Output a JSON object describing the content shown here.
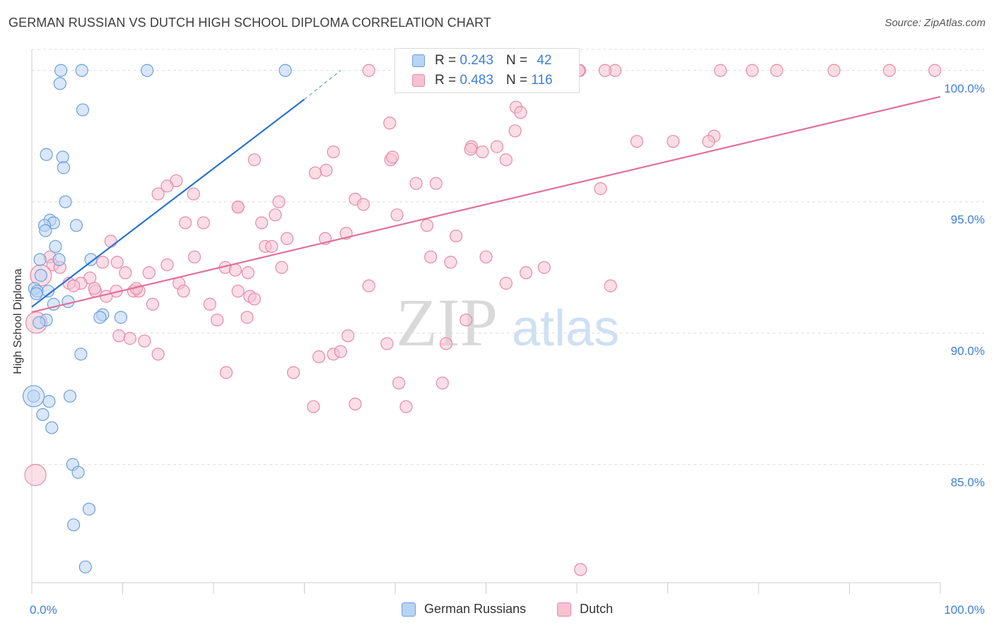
{
  "title": "GERMAN RUSSIAN VS DUTCH HIGH SCHOOL DIPLOMA CORRELATION CHART",
  "source": "Source: ZipAtlas.com",
  "watermark": {
    "zip": "ZIP",
    "atlas": "atlas"
  },
  "colors": {
    "blue_fill": "#b9d3f3",
    "blue_stroke": "#6c9fdd",
    "blue_line": "#2a72cf",
    "pink_fill": "#f7c1d2",
    "pink_stroke": "#e58aa9",
    "pink_line": "#e0709a",
    "axis_label": "#3f7fd6",
    "grid": "#dcdcdc"
  },
  "legend": {
    "rows": [
      {
        "r_label": "R = ",
        "r_value": "0.243",
        "n_label": "N = ",
        "n_value": "42"
      },
      {
        "r_label": "R = ",
        "r_value": "0.483",
        "n_label": "N = ",
        "n_value": "116"
      }
    ]
  },
  "chart_data": {
    "type": "scatter",
    "title": "GERMAN RUSSIAN VS DUTCH HIGH SCHOOL DIPLOMA CORRELATION CHART",
    "xlabel": "",
    "ylabel": "High School Diploma",
    "xlim": [
      0,
      100
    ],
    "ylim": [
      80.5,
      100.8
    ],
    "x_tick_labels": [
      "0.0%",
      "100.0%"
    ],
    "y_ticks": [
      {
        "value": 85,
        "label": "85.0%"
      },
      {
        "value": 90,
        "label": "90.0%"
      },
      {
        "value": 95,
        "label": "95.0%"
      },
      {
        "value": 100,
        "label": "100.0%"
      }
    ],
    "series": [
      {
        "name": "German Russians",
        "color": "blue",
        "trend": {
          "x0": 0,
          "y0": 91.0,
          "x1": 30,
          "y1": 98.9,
          "dash_to_x": 34,
          "dash_to_y": 100.0
        },
        "points": [
          [
            3.2,
            100
          ],
          [
            5.5,
            100
          ],
          [
            12.7,
            100
          ],
          [
            27.9,
            100
          ],
          [
            3.1,
            99.5
          ],
          [
            5.6,
            98.5
          ],
          [
            1.6,
            96.8
          ],
          [
            3.4,
            96.7
          ],
          [
            3.5,
            96.3
          ],
          [
            3.7,
            95.0
          ],
          [
            2.0,
            94.3
          ],
          [
            2.4,
            94.2
          ],
          [
            1.4,
            94.1
          ],
          [
            1.5,
            93.9
          ],
          [
            4.9,
            94.1
          ],
          [
            2.6,
            93.3
          ],
          [
            0.9,
            92.8
          ],
          [
            3.0,
            92.8
          ],
          [
            6.5,
            92.8
          ],
          [
            1.0,
            92.2
          ],
          [
            0.3,
            91.7
          ],
          [
            0.6,
            91.6
          ],
          [
            1.8,
            91.6
          ],
          [
            0.5,
            91.5
          ],
          [
            4.0,
            91.2
          ],
          [
            2.4,
            91.1
          ],
          [
            7.8,
            90.7
          ],
          [
            7.5,
            90.6
          ],
          [
            9.8,
            90.6
          ],
          [
            1.6,
            90.5
          ],
          [
            0.8,
            90.4
          ],
          [
            5.4,
            89.2
          ],
          [
            0.2,
            87.6
          ],
          [
            4.2,
            87.6
          ],
          [
            1.9,
            87.4
          ],
          [
            1.2,
            86.9
          ],
          [
            2.2,
            86.4
          ],
          [
            4.5,
            85.0
          ],
          [
            5.1,
            84.7
          ],
          [
            6.3,
            83.3
          ],
          [
            4.6,
            82.7
          ],
          [
            5.9,
            81.1
          ]
        ],
        "large_points": [
          [
            0.2,
            87.6
          ]
        ]
      },
      {
        "name": "Dutch",
        "color": "pink",
        "trend": {
          "x0": 0,
          "y0": 90.8,
          "x1": 100,
          "y1": 99.0
        },
        "points": [
          [
            37.1,
            100
          ],
          [
            55.4,
            100
          ],
          [
            59.0,
            100
          ],
          [
            64.2,
            100
          ],
          [
            60.3,
            100
          ],
          [
            60.2,
            100
          ],
          [
            63.1,
            100
          ],
          [
            75.8,
            100
          ],
          [
            79.3,
            100
          ],
          [
            82.0,
            100
          ],
          [
            88.3,
            100
          ],
          [
            94.4,
            100
          ],
          [
            99.4,
            100
          ],
          [
            53.3,
            98.6
          ],
          [
            53.8,
            98.4
          ],
          [
            39.4,
            98.0
          ],
          [
            53.2,
            97.7
          ],
          [
            75.1,
            97.5
          ],
          [
            74.5,
            97.3
          ],
          [
            70.6,
            97.3
          ],
          [
            66.6,
            97.3
          ],
          [
            48.4,
            97.1
          ],
          [
            51.2,
            97.1
          ],
          [
            48.3,
            97.0
          ],
          [
            33.2,
            96.9
          ],
          [
            49.6,
            96.9
          ],
          [
            39.5,
            96.6
          ],
          [
            52.2,
            96.6
          ],
          [
            39.7,
            96.7
          ],
          [
            24.5,
            96.6
          ],
          [
            32.4,
            96.2
          ],
          [
            31.2,
            96.1
          ],
          [
            15.9,
            95.8
          ],
          [
            14.9,
            95.6
          ],
          [
            42.3,
            95.7
          ],
          [
            44.5,
            95.7
          ],
          [
            13.9,
            95.3
          ],
          [
            17.8,
            95.3
          ],
          [
            62.6,
            95.5
          ],
          [
            35.6,
            95.1
          ],
          [
            27.2,
            95.0
          ],
          [
            36.5,
            94.9
          ],
          [
            22.7,
            94.8
          ],
          [
            22.7,
            94.8
          ],
          [
            26.8,
            94.5
          ],
          [
            40.2,
            94.5
          ],
          [
            16.9,
            94.2
          ],
          [
            18.9,
            94.2
          ],
          [
            25.3,
            94.2
          ],
          [
            43.5,
            94.1
          ],
          [
            34.6,
            93.8
          ],
          [
            46.7,
            93.7
          ],
          [
            28.1,
            93.6
          ],
          [
            32.3,
            93.6
          ],
          [
            8.7,
            93.5
          ],
          [
            25.7,
            93.3
          ],
          [
            26.4,
            93.3
          ],
          [
            17.9,
            92.9
          ],
          [
            43.9,
            92.9
          ],
          [
            50.0,
            92.9
          ],
          [
            2.0,
            92.9
          ],
          [
            46.1,
            92.7
          ],
          [
            9.4,
            92.7
          ],
          [
            7.8,
            92.7
          ],
          [
            14.9,
            92.6
          ],
          [
            21.3,
            92.5
          ],
          [
            22.4,
            92.4
          ],
          [
            27.5,
            92.5
          ],
          [
            10.3,
            92.3
          ],
          [
            12.9,
            92.3
          ],
          [
            23.8,
            92.3
          ],
          [
            54.4,
            92.3
          ],
          [
            56.4,
            92.5
          ],
          [
            2.3,
            92.6
          ],
          [
            3.1,
            92.5
          ],
          [
            6.4,
            92.1
          ],
          [
            4.1,
            91.9
          ],
          [
            5.4,
            91.9
          ],
          [
            16.2,
            91.9
          ],
          [
            4.6,
            91.8
          ],
          [
            52.2,
            91.9
          ],
          [
            63.7,
            91.8
          ],
          [
            37.1,
            91.8
          ],
          [
            9.3,
            91.6
          ],
          [
            11.2,
            91.6
          ],
          [
            11.8,
            91.6
          ],
          [
            16.7,
            91.6
          ],
          [
            7.0,
            91.6
          ],
          [
            11.5,
            91.7
          ],
          [
            6.9,
            91.7
          ],
          [
            22.7,
            91.6
          ],
          [
            24.0,
            91.4
          ],
          [
            8.2,
            91.4
          ],
          [
            13.3,
            91.1
          ],
          [
            19.6,
            91.1
          ],
          [
            24.5,
            91.3
          ],
          [
            20.4,
            90.5
          ],
          [
            23.7,
            90.6
          ],
          [
            47.8,
            90.5
          ],
          [
            9.6,
            89.9
          ],
          [
            10.8,
            89.8
          ],
          [
            12.4,
            89.7
          ],
          [
            34.8,
            89.9
          ],
          [
            39.1,
            89.6
          ],
          [
            45.6,
            89.6
          ],
          [
            13.9,
            89.2
          ],
          [
            31.6,
            89.1
          ],
          [
            33.2,
            89.2
          ],
          [
            34.0,
            89.3
          ],
          [
            21.4,
            88.5
          ],
          [
            28.8,
            88.5
          ],
          [
            40.4,
            88.1
          ],
          [
            45.2,
            88.1
          ],
          [
            35.6,
            87.3
          ],
          [
            31.0,
            87.2
          ],
          [
            41.2,
            87.2
          ],
          [
            60.4,
            81.0
          ]
        ],
        "large_points": [
          [
            0.5,
            90.4
          ],
          [
            0.4,
            84.6
          ],
          [
            1.0,
            92.2
          ]
        ]
      }
    ]
  },
  "bottom_legend": [
    {
      "label": "German Russians",
      "color": "blue"
    },
    {
      "label": "Dutch",
      "color": "pink"
    }
  ]
}
